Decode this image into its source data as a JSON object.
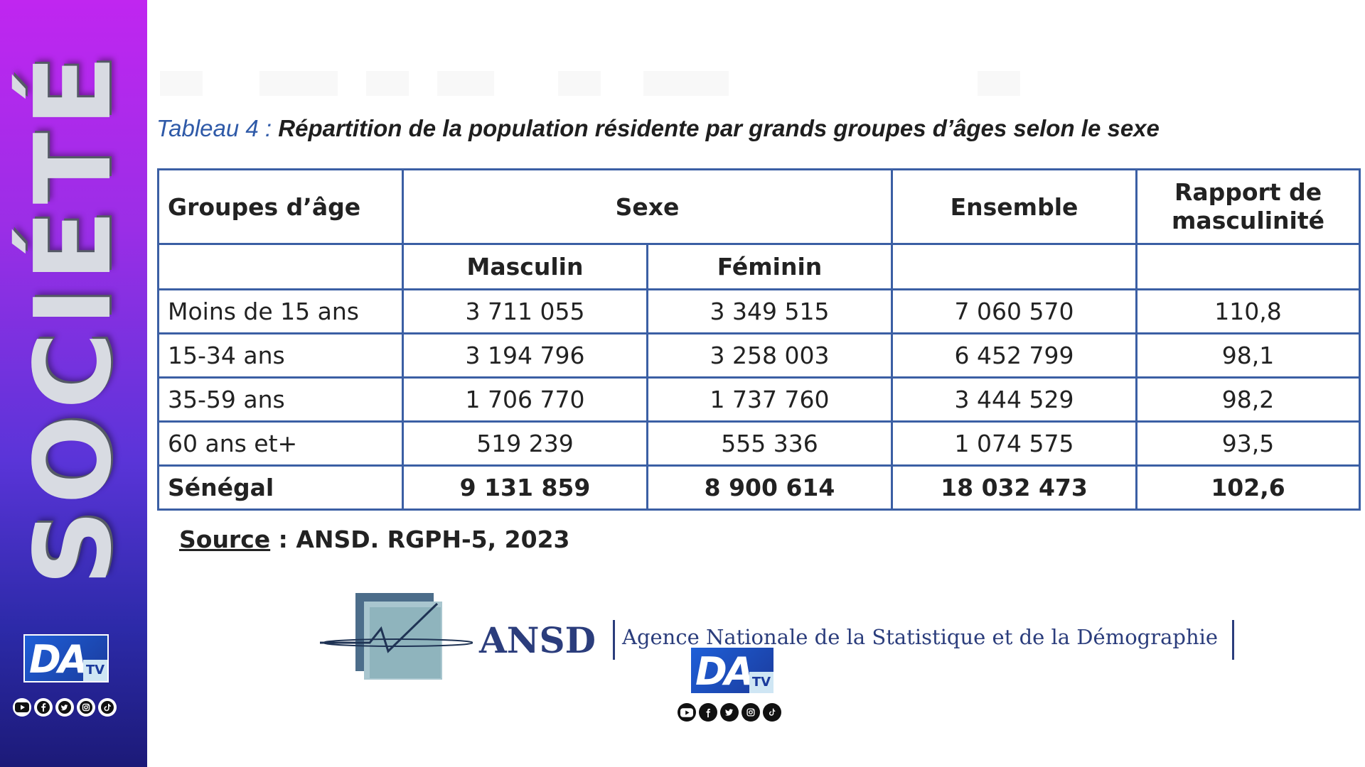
{
  "sidebar": {
    "vertical_label": "SOCIÉTÉ",
    "logo_text": "DA",
    "logo_badge": "TV",
    "social_icons": [
      "youtube-icon",
      "facebook-icon",
      "twitter-icon",
      "instagram-icon",
      "tiktok-icon"
    ]
  },
  "document": {
    "caption_lead": "Tableau 4 :",
    "caption_title": "Répartition de la population résidente par grands groupes d’âges selon le sexe",
    "table": {
      "headers": {
        "age_group": "Groupes d’âge",
        "sex": "Sexe",
        "total": "Ensemble",
        "ratio": "Rapport de masculinité",
        "male": "Masculin",
        "female": "Féminin"
      },
      "rows": [
        {
          "group": "Moins de 15 ans",
          "male": "3 711 055",
          "female": "3 349 515",
          "total": "7 060 570",
          "ratio": "110,8"
        },
        {
          "group": "15-34 ans",
          "male": "3 194 796",
          "female": "3 258 003",
          "total": "6 452 799",
          "ratio": "98,1"
        },
        {
          "group": "35-59 ans",
          "male": "1 706 770",
          "female": "1 737 760",
          "total": "3 444 529",
          "ratio": "98,2"
        },
        {
          "group": "60 ans et+",
          "male": "519 239",
          "female": "555 336",
          "total": "1 074 575",
          "ratio": "93,5"
        }
      ],
      "total_row": {
        "group": "Sénégal",
        "male": "9 131 859",
        "female": "8 900 614",
        "total": "18 032 473",
        "ratio": "102,6"
      }
    },
    "source_label": "Source",
    "source_text": " : ANSD. RGPH-5, 2023"
  },
  "agency": {
    "acronym": "ANSD",
    "full_name": "Agence Nationale de la Statistique et de la Démographie"
  },
  "watermark": {
    "logo_text": "DA",
    "logo_badge": "TV",
    "social_icons": [
      "youtube-icon",
      "facebook-icon",
      "twitter-icon",
      "instagram-icon",
      "tiktok-icon"
    ]
  },
  "colors": {
    "sidebar_top": "#c026f0",
    "sidebar_bottom": "#1c1a78",
    "table_border": "#3b5fa4",
    "caption_accent": "#2f5aa8",
    "agency_blue": "#2b3d7c"
  }
}
